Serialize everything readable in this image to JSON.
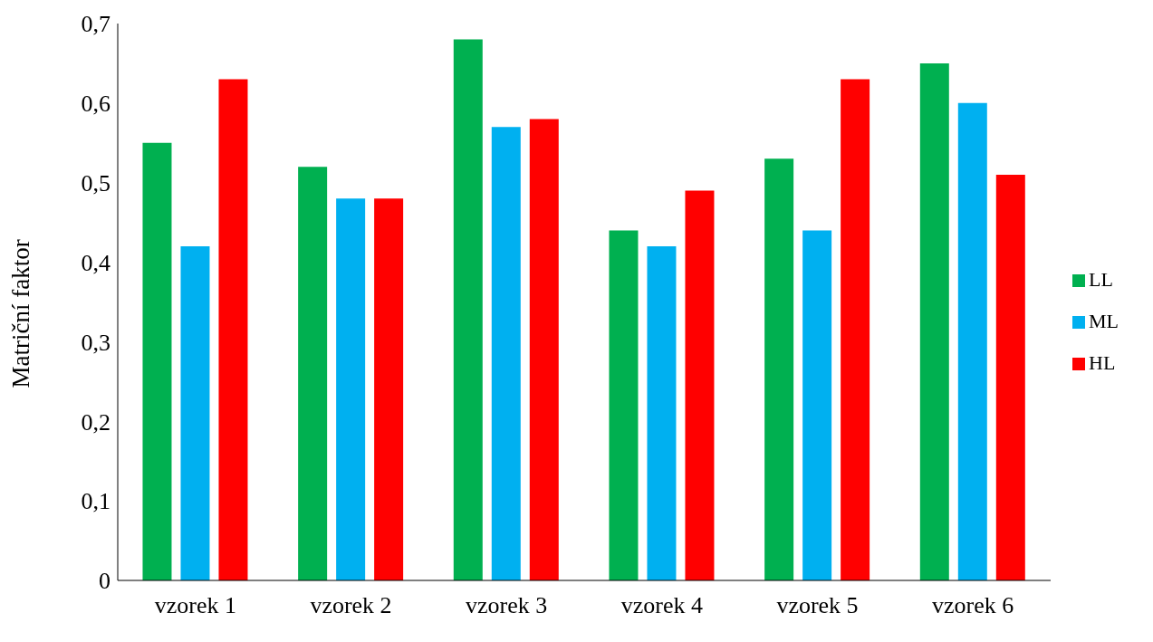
{
  "chart_data": {
    "type": "bar",
    "ylabel": "Matriční faktor",
    "categories": [
      "vzorek 1",
      "vzorek 2",
      "vzorek 3",
      "vzorek 4",
      "vzorek 5",
      "vzorek 6"
    ],
    "series": [
      {
        "name": "LL",
        "color": "#00b050",
        "values": [
          0.55,
          0.52,
          0.68,
          0.44,
          0.53,
          0.65
        ]
      },
      {
        "name": "ML",
        "color": "#00b0f0",
        "values": [
          0.42,
          0.48,
          0.57,
          0.42,
          0.44,
          0.6
        ]
      },
      {
        "name": "HL",
        "color": "#ff0000",
        "values": [
          0.63,
          0.48,
          0.58,
          0.49,
          0.63,
          0.51
        ]
      }
    ],
    "ylim": [
      0,
      0.7
    ],
    "yticks": [
      0,
      {
        "value": 0.1,
        "label": "0,1"
      },
      {
        "value": 0.2,
        "label": "0,2"
      },
      {
        "value": 0.3,
        "label": "0,3"
      },
      {
        "value": 0.4,
        "label": "0,4"
      },
      {
        "value": 0.5,
        "label": "0,5"
      },
      {
        "value": 0.6,
        "label": "0,6"
      },
      {
        "value": 0.7,
        "label": "0,7"
      }
    ],
    "grid": false,
    "legend": "right"
  }
}
